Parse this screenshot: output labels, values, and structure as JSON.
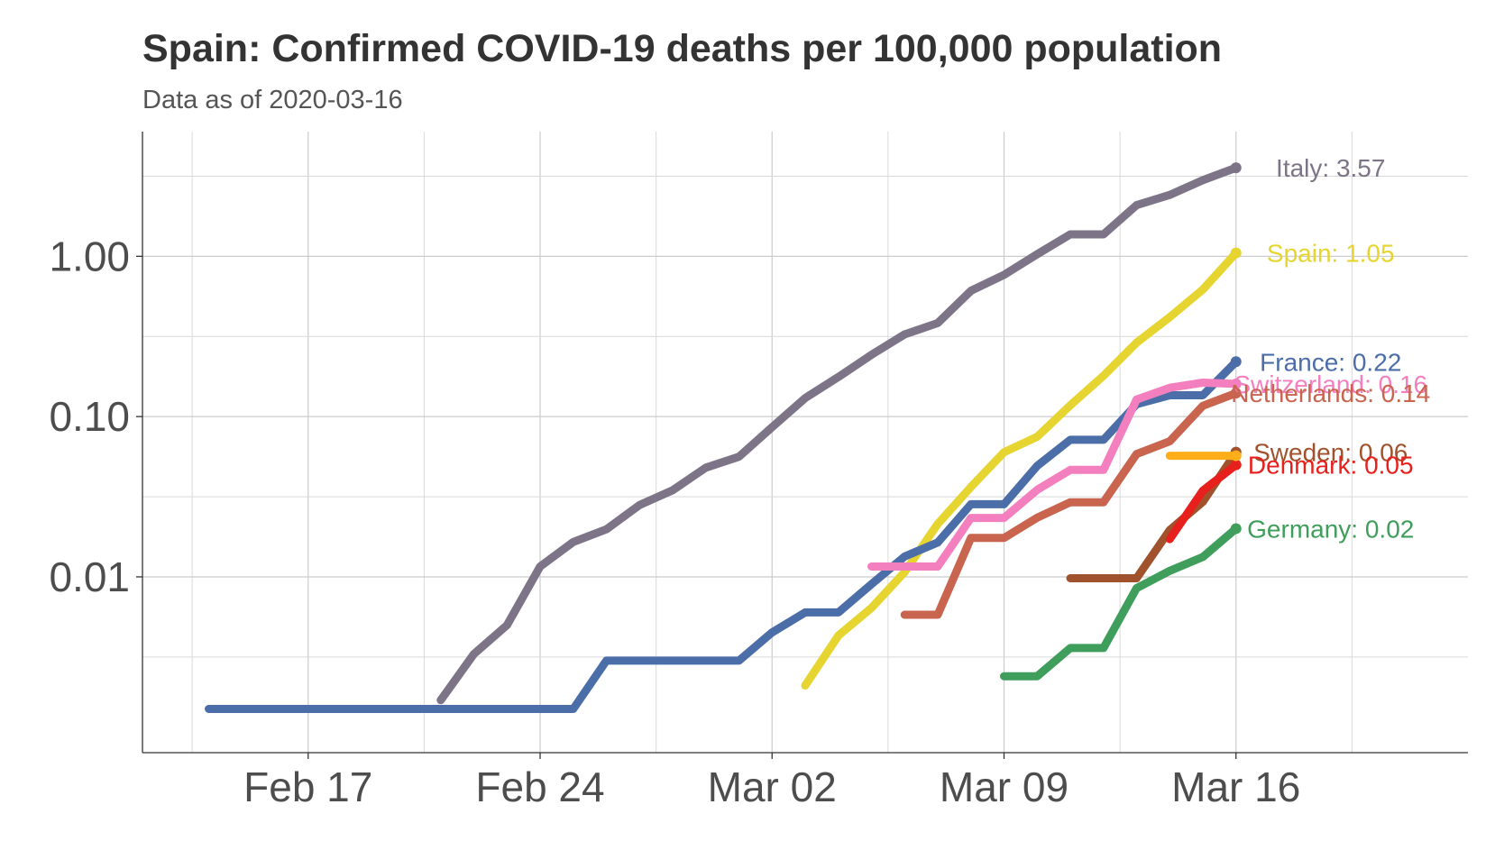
{
  "title": "Spain: Confirmed COVID-19 deaths per 100,000 population",
  "subtitle": "Data as of 2020-03-16",
  "chart_data": {
    "type": "line",
    "title": "Spain: Confirmed COVID-19 deaths per 100,000 population",
    "subtitle": "Data as of 2020-03-16",
    "xlabel": "",
    "ylabel": "",
    "y_scale": "log10",
    "grid": true,
    "legend": "direct labels at line ends",
    "x_ticks": [
      "Feb 17",
      "Feb 24",
      "Mar 02",
      "Mar 09",
      "Mar 16"
    ],
    "y_ticks": [
      "0.01",
      "0.10",
      "1.00"
    ],
    "xlim": [
      "2020-02-12",
      "2020-03-23"
    ],
    "ylim": [
      0.0008,
      6
    ],
    "series": [
      {
        "name": "Italy",
        "label": "Italy: 3.57",
        "color": "#7d7587",
        "x": [
          "2020-02-21",
          "2020-02-22",
          "2020-02-23",
          "2020-02-24",
          "2020-02-25",
          "2020-02-26",
          "2020-02-27",
          "2020-02-28",
          "2020-02-29",
          "2020-03-01",
          "2020-03-02",
          "2020-03-03",
          "2020-03-04",
          "2020-03-05",
          "2020-03-06",
          "2020-03-07",
          "2020-03-08",
          "2020-03-09",
          "2020-03-10",
          "2020-03-11",
          "2020-03-12",
          "2020-03-13",
          "2020-03-14",
          "2020-03-15",
          "2020-03-16"
        ],
        "values": [
          0.0017,
          0.0033,
          0.005,
          0.0116,
          0.0165,
          0.0198,
          0.0281,
          0.0347,
          0.048,
          0.0562,
          0.0859,
          0.1305,
          0.1768,
          0.2429,
          0.3255,
          0.3834,
          0.6097,
          0.7667,
          1.0316,
          1.3716,
          1.3716,
          2.0862,
          2.4161,
          2.9856,
          3.57
        ]
      },
      {
        "name": "Spain",
        "label": "Spain: 1.05",
        "color": "#e6d530",
        "x": [
          "2020-03-03",
          "2020-03-04",
          "2020-03-05",
          "2020-03-06",
          "2020-03-07",
          "2020-03-08",
          "2020-03-09",
          "2020-03-10",
          "2020-03-11",
          "2020-03-12",
          "2020-03-13",
          "2020-03-14",
          "2020-03-15",
          "2020-03-16"
        ],
        "values": [
          0.0021,
          0.0043,
          0.0064,
          0.0107,
          0.0214,
          0.0364,
          0.0599,
          0.0749,
          0.1177,
          0.1798,
          0.2889,
          0.4173,
          0.6206,
          1.05
        ]
      },
      {
        "name": "France",
        "label": "France: 0.22",
        "color": "#4b6ea8",
        "x": [
          "2020-02-14",
          "2020-02-15",
          "2020-02-16",
          "2020-02-17",
          "2020-02-18",
          "2020-02-19",
          "2020-02-20",
          "2020-02-21",
          "2020-02-22",
          "2020-02-23",
          "2020-02-24",
          "2020-02-25",
          "2020-02-26",
          "2020-02-27",
          "2020-02-28",
          "2020-02-29",
          "2020-03-01",
          "2020-03-02",
          "2020-03-03",
          "2020-03-04",
          "2020-03-05",
          "2020-03-06",
          "2020-03-07",
          "2020-03-08",
          "2020-03-09",
          "2020-03-10",
          "2020-03-11",
          "2020-03-12",
          "2020-03-13",
          "2020-03-14",
          "2020-03-15",
          "2020-03-16"
        ],
        "values": [
          0.0015,
          0.0015,
          0.0015,
          0.0015,
          0.0015,
          0.0015,
          0.0015,
          0.0015,
          0.0015,
          0.0015,
          0.0015,
          0.0015,
          0.003,
          0.003,
          0.003,
          0.003,
          0.003,
          0.0045,
          0.006,
          0.006,
          0.009,
          0.0134,
          0.0164,
          0.0284,
          0.0284,
          0.0493,
          0.0717,
          0.0717,
          0.1195,
          0.1359,
          0.1359,
          0.22
        ]
      },
      {
        "name": "Switzerland",
        "label": "Switzerland: 0.16",
        "color": "#f47fbf",
        "x": [
          "2020-03-05",
          "2020-03-06",
          "2020-03-07",
          "2020-03-08",
          "2020-03-09",
          "2020-03-10",
          "2020-03-11",
          "2020-03-12",
          "2020-03-13",
          "2020-03-14",
          "2020-03-15",
          "2020-03-16"
        ],
        "values": [
          0.0116,
          0.0116,
          0.0116,
          0.0233,
          0.0233,
          0.0349,
          0.0465,
          0.0465,
          0.1279,
          0.1512,
          0.1628,
          0.16
        ]
      },
      {
        "name": "Netherlands",
        "label": "Netherlands: 0.14",
        "color": "#c9644f",
        "x": [
          "2020-03-06",
          "2020-03-07",
          "2020-03-08",
          "2020-03-09",
          "2020-03-10",
          "2020-03-11",
          "2020-03-12",
          "2020-03-13",
          "2020-03-14",
          "2020-03-15",
          "2020-03-16"
        ],
        "values": [
          0.0058,
          0.0058,
          0.0175,
          0.0175,
          0.0234,
          0.0292,
          0.0292,
          0.0584,
          0.0701,
          0.1168,
          0.14
        ]
      },
      {
        "name": "Sweden",
        "label": "Sweden: 0.06",
        "color": "#a0522d",
        "x": [
          "2020-03-11",
          "2020-03-12",
          "2020-03-13",
          "2020-03-14",
          "2020-03-15",
          "2020-03-16"
        ],
        "values": [
          0.0098,
          0.0098,
          0.0098,
          0.0196,
          0.0294,
          0.06
        ]
      },
      {
        "name": "Denmark",
        "label": "Denmark: 0.05",
        "color": "#e8201d",
        "x": [
          "2020-03-14",
          "2020-03-15",
          "2020-03-16"
        ],
        "values": [
          0.0172,
          0.0345,
          0.05
        ]
      },
      {
        "name": "",
        "label": "",
        "color": "#ffae1a",
        "x": [
          "2020-03-14",
          "2020-03-15",
          "2020-03-16"
        ],
        "values": [
          0.057,
          0.057,
          0.057
        ]
      },
      {
        "name": "Germany",
        "label": "Germany: 0.02",
        "color": "#3f9e5b",
        "x": [
          "2020-03-09",
          "2020-03-10",
          "2020-03-11",
          "2020-03-12",
          "2020-03-13",
          "2020-03-14",
          "2020-03-15",
          "2020-03-16"
        ],
        "values": [
          0.0024,
          0.0024,
          0.0036,
          0.0036,
          0.0085,
          0.0109,
          0.0133,
          0.02
        ]
      }
    ]
  }
}
